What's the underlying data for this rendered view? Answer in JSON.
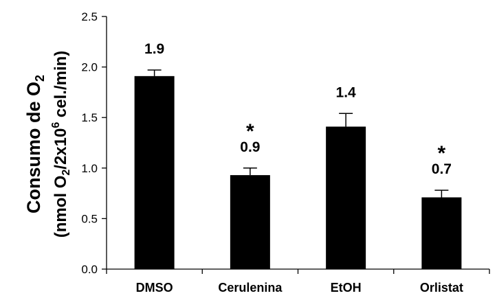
{
  "chart_data": {
    "type": "bar",
    "categories": [
      "DMSO",
      "Cerulenina",
      "EtOH",
      "Orlistat"
    ],
    "values": [
      1.91,
      0.93,
      1.41,
      0.71
    ],
    "errors": [
      0.06,
      0.07,
      0.13,
      0.07
    ],
    "data_labels": [
      "1.9",
      "0.9",
      "1.4",
      "0.7"
    ],
    "significance": [
      "",
      "*",
      "",
      "*"
    ],
    "yticks": [
      "0.0",
      "0.5",
      "1.0",
      "1.5",
      "2.0",
      "2.5"
    ],
    "ylim": [
      0,
      2.5
    ],
    "ylabel_line1": "Consumo de O",
    "ylabel_line1_sub": "2",
    "ylabel_line2_a": "(nmol O",
    "ylabel_line2_sub": "2",
    "ylabel_line2_b": "/2x10",
    "ylabel_line2_sup": "6",
    "ylabel_line2_c": " cel./min)",
    "bar_color": "#000000",
    "grid": false
  }
}
